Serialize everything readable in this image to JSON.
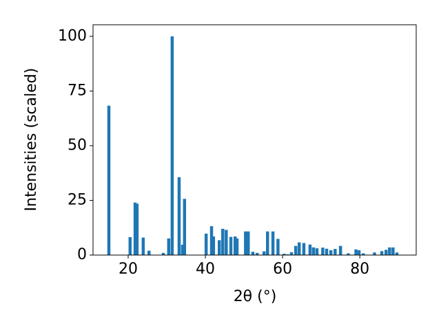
{
  "chart_data": {
    "type": "bar",
    "xlabel": "2θ (°)",
    "ylabel": "Intensities (scaled)",
    "x": [
      15.0,
      20.5,
      21.8,
      22.3,
      23.9,
      25.4,
      29.1,
      30.5,
      31.4,
      33.2,
      34.1,
      34.6,
      40.2,
      41.6,
      42.1,
      43.6,
      44.5,
      45.4,
      46.6,
      47.7,
      48.2,
      50.4,
      51.1,
      52.3,
      53.4,
      55.2,
      56.1,
      57.5,
      58.8,
      60.4,
      61.3,
      62.3,
      63.4,
      64.3,
      65.5,
      67.1,
      68.0,
      68.9,
      70.4,
      71.4,
      72.5,
      73.6,
      75.0,
      77.0,
      79.0,
      79.8,
      80.9,
      83.8,
      85.7,
      86.8,
      87.7,
      88.6,
      89.6
    ],
    "values": [
      68.3,
      8.2,
      24.0,
      23.5,
      8.0,
      2.0,
      1.0,
      7.6,
      100,
      35.6,
      4.7,
      25.7,
      9.8,
      13.2,
      8.5,
      6.8,
      12.0,
      11.5,
      8.3,
      8.5,
      7.6,
      10.8,
      10.8,
      1.5,
      1.0,
      1.7,
      10.8,
      10.8,
      7.4,
      0.6,
      0.3,
      1.3,
      4.2,
      5.8,
      5.5,
      4.8,
      3.5,
      3.1,
      3.4,
      2.9,
      2.2,
      2.8,
      4.2,
      0.8,
      2.6,
      2.2,
      0.8,
      1.2,
      1.8,
      2.4,
      3.5,
      3.5,
      1.2
    ],
    "color": "#1f77b4",
    "xlim": [
      10.9,
      94.6
    ],
    "xticks": [
      20,
      40,
      60,
      80
    ],
    "ylim": [
      0,
      105.3
    ],
    "yticks": [
      0,
      25,
      50,
      75,
      100
    ],
    "grid": false
  }
}
